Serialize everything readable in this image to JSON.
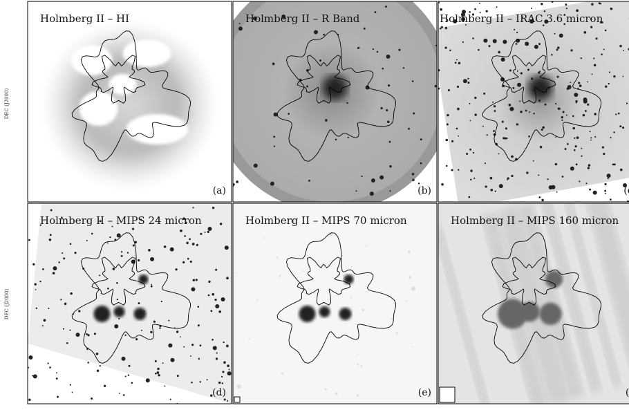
{
  "panels": [
    {
      "title": "Holmberg II – HI",
      "label": "(a)"
    },
    {
      "title": "Holmberg II – R Band",
      "label": "(b)"
    },
    {
      "title": "Holmberg II – IRAC 3.6 micron",
      "label": "(c)"
    },
    {
      "title": "Holmberg II – MIPS 24 micron",
      "label": "(d)"
    },
    {
      "title": "Holmberg II – MIPS 70 micron",
      "label": "(e)"
    },
    {
      "title": "Holmberg II – MIPS 160 micron",
      "label": "(f)"
    }
  ],
  "y_axis_labels": [
    "DEC (J2000)",
    "DEC (J2000)"
  ]
}
